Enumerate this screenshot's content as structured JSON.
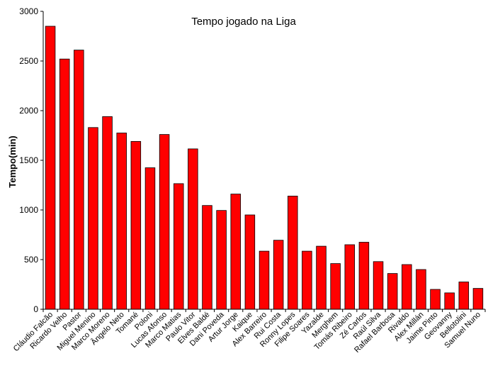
{
  "chart_data": {
    "type": "bar",
    "title": "Tempo jogado na Liga",
    "xlabel": "",
    "ylabel": "Tempo(min)",
    "ylim": [
      0,
      3000
    ],
    "yticks": [
      0,
      500,
      1000,
      1500,
      2000,
      2500,
      3000
    ],
    "grid": false,
    "legend": "none",
    "bar_color": "#ff0000",
    "bar_stroke": "#000000",
    "categories": [
      "Cláudio Falcão",
      "Ricardo Velho",
      "Pastor",
      "Miguel Menino",
      "Marco Moreno",
      "Ângelo Neto",
      "Tomané",
      "Poloni",
      "Lucas Afonso",
      "Marco Matias",
      "Paulo Vitor",
      "Elves Baldé",
      "Dani Poveda",
      "Artur Jorge",
      "Kaique",
      "Alex Barreiro",
      "Rui Costa",
      "Ronny Lopes",
      "Filipe Soares",
      "Yazalde",
      "Merghem",
      "Tomás Ribeiro",
      "Zé Carlos",
      "Raúl Silva",
      "Rafael Barbosa",
      "Rivaldo",
      "Alex Millán",
      "Jaime Pinto",
      "Geovanny",
      "Bellotolini",
      "Samuel Nuno"
    ],
    "values": [
      2850,
      2520,
      2610,
      1830,
      1940,
      1775,
      1690,
      1425,
      1760,
      1265,
      1615,
      1045,
      995,
      1160,
      950,
      585,
      695,
      1140,
      585,
      635,
      460,
      650,
      675,
      480,
      360,
      450,
      400,
      200,
      165,
      275,
      210
    ]
  }
}
